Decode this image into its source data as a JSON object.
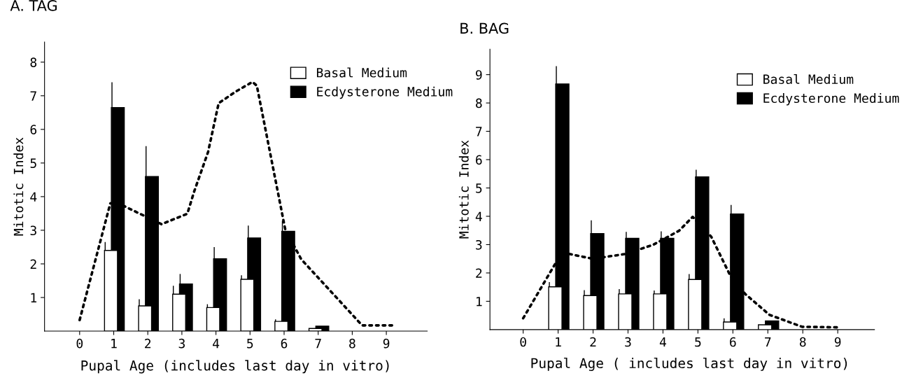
{
  "chart_data": [
    {
      "type": "bar",
      "title": "A. TAG",
      "xlabel": "Pupal Age (includes last day in vitro)",
      "ylabel": "Mitotic Index",
      "xlim": [
        -1.03,
        10.2
      ],
      "ylim": [
        0,
        8.6
      ],
      "xticks": [
        0,
        1,
        2,
        3,
        4,
        5,
        6,
        7,
        8,
        9
      ],
      "yticks": [
        1,
        2,
        3,
        4,
        5,
        6,
        7,
        8
      ],
      "grid": false,
      "legend": "top right",
      "series": [
        {
          "name": "Ecdysterone Medium",
          "color": "#000000",
          "x": [
            1,
            2,
            3,
            4,
            5,
            6,
            7
          ],
          "values": [
            6.65,
            4.6,
            1.4,
            2.15,
            2.77,
            2.97,
            0.15
          ],
          "errors": [
            [
              6.65,
              7.4
            ],
            [
              4.6,
              5.5
            ],
            [
              1.4,
              1.7
            ],
            [
              2.15,
              2.5
            ],
            [
              2.77,
              3.14
            ],
            [
              2.97,
              3.28
            ],
            null
          ]
        },
        {
          "name": "Basal Medium",
          "color": "#ffffff",
          "x": [
            1,
            2,
            3,
            4,
            5,
            6,
            7
          ],
          "values": [
            2.4,
            0.75,
            1.1,
            0.7,
            1.54,
            0.29,
            0.08
          ],
          "errors": [
            [
              2.4,
              2.65
            ],
            [
              0.75,
              0.95
            ],
            [
              1.1,
              1.35
            ],
            [
              0.7,
              0.8
            ],
            [
              1.54,
              1.66
            ],
            [
              0.29,
              0.35
            ],
            null
          ]
        },
        {
          "type": "line",
          "color": "#000000",
          "line_style": "dotted",
          "x": [
            0,
            0.9,
            1.1,
            2.4,
            3.16,
            3.36,
            3.77,
            4.08,
            4.59,
            5.07,
            5.2,
            6.03,
            6.5,
            8.29,
            9.24
          ],
          "values": [
            0.33,
            3.8,
            3.82,
            3.18,
            3.49,
            4.15,
            5.33,
            6.78,
            7.13,
            7.41,
            7.3,
            3.04,
            2.14,
            0.17,
            0.17
          ]
        }
      ]
    },
    {
      "type": "bar",
      "title": "B. BAG",
      "xlabel": "Pupal Age ( includes last day in vitro)",
      "ylabel": "Mitotic Index",
      "xlim": [
        -0.95,
        10.05
      ],
      "ylim": [
        0,
        9.9
      ],
      "xticks": [
        0,
        1,
        2,
        3,
        4,
        5,
        6,
        7,
        8,
        9
      ],
      "yticks": [
        1,
        2,
        3,
        4,
        5,
        6,
        7,
        8,
        9
      ],
      "grid": false,
      "legend": "top right",
      "series": [
        {
          "name": "Ecdysterone Medium",
          "color": "#000000",
          "x": [
            1,
            2,
            3,
            4,
            5,
            6,
            7
          ],
          "values": [
            8.67,
            3.39,
            3.22,
            3.22,
            5.39,
            4.08,
            0.31
          ],
          "errors": [
            [
              8.67,
              9.3
            ],
            [
              3.39,
              3.86
            ],
            [
              3.22,
              3.45
            ],
            [
              3.22,
              3.47
            ],
            [
              5.39,
              5.64
            ],
            [
              4.08,
              4.4
            ],
            null
          ]
        },
        {
          "name": "Basal Medium",
          "color": "#ffffff",
          "x": [
            1,
            2,
            3,
            4,
            5,
            6,
            7
          ],
          "values": [
            1.51,
            1.2,
            1.26,
            1.26,
            1.77,
            0.27,
            0.17
          ],
          "errors": [
            [
              1.51,
              1.68
            ],
            [
              1.2,
              1.39
            ],
            [
              1.26,
              1.43
            ],
            [
              1.26,
              1.38
            ],
            [
              1.77,
              1.96
            ],
            [
              0.27,
              0.4
            ],
            null
          ]
        },
        {
          "type": "line",
          "color": "#000000",
          "line_style": "dotted",
          "x": [
            0,
            0.92,
            1.32,
            1.99,
            2.93,
            3.73,
            4.46,
            4.85,
            5.38,
            5.92,
            6.35,
            7.05,
            7.98,
            9.01
          ],
          "values": [
            0.4,
            2.33,
            2.67,
            2.5,
            2.67,
            3.0,
            3.49,
            3.98,
            3.28,
            1.92,
            1.26,
            0.52,
            0.1,
            0.08
          ]
        }
      ]
    }
  ]
}
